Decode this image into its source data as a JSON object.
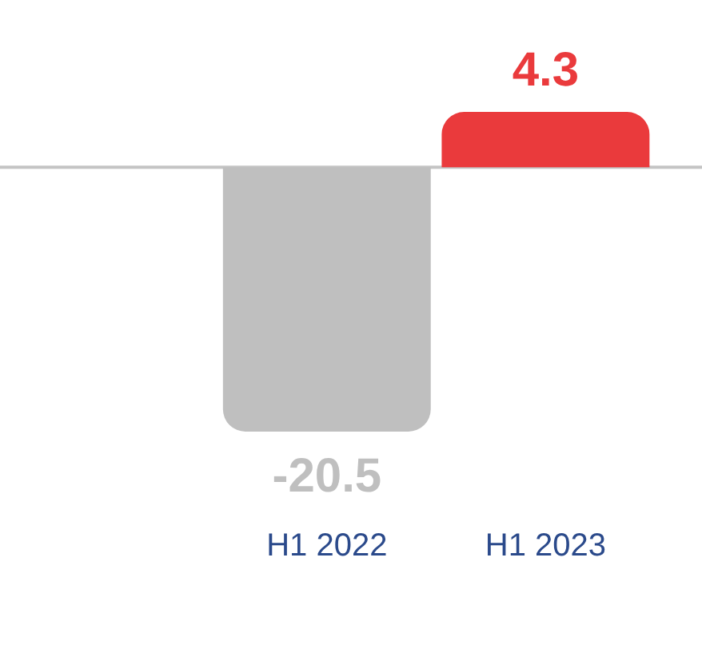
{
  "chart_data": {
    "type": "bar",
    "categories": [
      "H1 2022",
      "H1 2023"
    ],
    "values": [
      -20.5,
      4.3
    ],
    "colors": [
      "#bfbfbf",
      "#ea3a3c"
    ],
    "data_labels": true,
    "tick_labels": "x",
    "grid": false,
    "legend": false
  }
}
